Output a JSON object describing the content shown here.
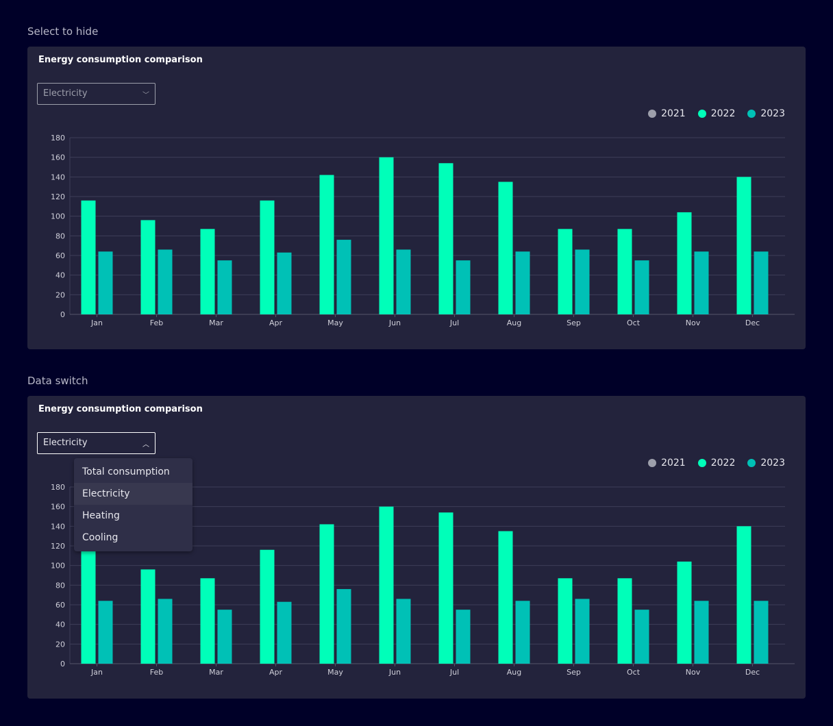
{
  "sections": [
    {
      "title": "Select to hide",
      "card_title": "Energy consumption comparison",
      "select_value": "Electricity",
      "open": false
    },
    {
      "title": "Data switch",
      "card_title": "Energy consumption comparison",
      "select_value": "Electricity",
      "open": true,
      "options": [
        "Total consumption",
        "Electricity",
        "Heating",
        "Cooling"
      ],
      "hovered_option": "Electricity"
    }
  ],
  "legend": [
    {
      "label": "2021",
      "color": "#9d9fab",
      "hidden": true
    },
    {
      "label": "2022",
      "color": "#00ffb9"
    },
    {
      "label": "2023",
      "color": "#00c1b6"
    }
  ],
  "chart_data": {
    "type": "bar",
    "title": "Energy consumption comparison",
    "categories": [
      "Jan",
      "Feb",
      "Mar",
      "Apr",
      "May",
      "Jun",
      "Jul",
      "Aug",
      "Sep",
      "Oct",
      "Nov",
      "Dec"
    ],
    "ylim": [
      0,
      180
    ],
    "yticks": [
      0,
      20,
      40,
      60,
      80,
      100,
      120,
      140,
      160,
      180
    ],
    "grid": true,
    "legend_position": "top-right",
    "series": [
      {
        "name": "2022",
        "color": "#00ffb9",
        "values": [
          116,
          96,
          87,
          116,
          142,
          160,
          154,
          135,
          87,
          87,
          104,
          140
        ]
      },
      {
        "name": "2023",
        "color": "#00c1b6",
        "values": [
          64,
          66,
          55,
          63,
          76,
          66,
          55,
          64,
          66,
          55,
          64,
          64
        ]
      }
    ]
  }
}
